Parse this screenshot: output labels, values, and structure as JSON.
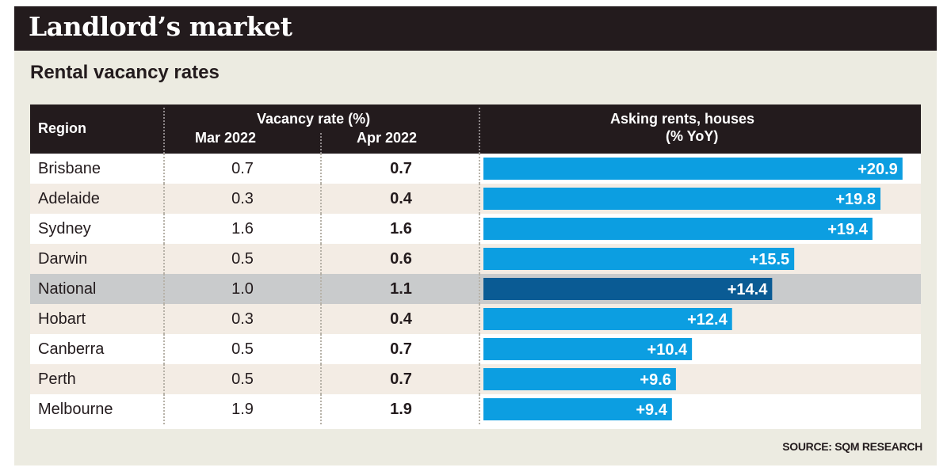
{
  "header": {
    "title": "Landlord’s market",
    "subtitle": "Rental vacancy rates"
  },
  "columns": {
    "region": "Region",
    "vacancy_group": "Vacancy rate (%)",
    "mar": "Mar 2022",
    "apr": "Apr 2022",
    "rents_line1": "Asking rents, houses",
    "rents_line2": "(% YoY)"
  },
  "source": "SOURCE: SQM RESEARCH",
  "colors": {
    "bar": "#0c9ee1",
    "bar_highlight": "#0a5b94",
    "header_bg": "#231b1d",
    "row_alt": "#f3ece4",
    "row_highlight": "#c9cbcc"
  },
  "chart_data": {
    "type": "table",
    "title": "Landlord’s market",
    "subtitle": "Rental vacancy rates",
    "columns": [
      "Region",
      "Mar 2022",
      "Apr 2022",
      "Asking rents, houses (% YoY)"
    ],
    "rows": [
      {
        "region": "Brisbane",
        "mar": "0.7",
        "apr": "0.7",
        "rent": 20.9,
        "rent_label": "+20.9",
        "highlight": false
      },
      {
        "region": "Adelaide",
        "mar": "0.3",
        "apr": "0.4",
        "rent": 19.8,
        "rent_label": "+19.8",
        "highlight": false
      },
      {
        "region": "Sydney",
        "mar": "1.6",
        "apr": "1.6",
        "rent": 19.4,
        "rent_label": "+19.4",
        "highlight": false
      },
      {
        "region": "Darwin",
        "mar": "0.5",
        "apr": "0.6",
        "rent": 15.5,
        "rent_label": "+15.5",
        "highlight": false
      },
      {
        "region": "National",
        "mar": "1.0",
        "apr": "1.1",
        "rent": 14.4,
        "rent_label": "+14.4",
        "highlight": true
      },
      {
        "region": "Hobart",
        "mar": "0.3",
        "apr": "0.4",
        "rent": 12.4,
        "rent_label": "+12.4",
        "highlight": false
      },
      {
        "region": "Canberra",
        "mar": "0.5",
        "apr": "0.7",
        "rent": 10.4,
        "rent_label": "+10.4",
        "highlight": false
      },
      {
        "region": "Perth",
        "mar": "0.5",
        "apr": "0.7",
        "rent": 9.6,
        "rent_label": "+9.6",
        "highlight": false
      },
      {
        "region": "Melbourne",
        "mar": "1.9",
        "apr": "1.9",
        "rent": 9.4,
        "rent_label": "+9.4",
        "highlight": false
      }
    ],
    "bar_axis_min": 0,
    "bar_axis_max": 21.5
  }
}
